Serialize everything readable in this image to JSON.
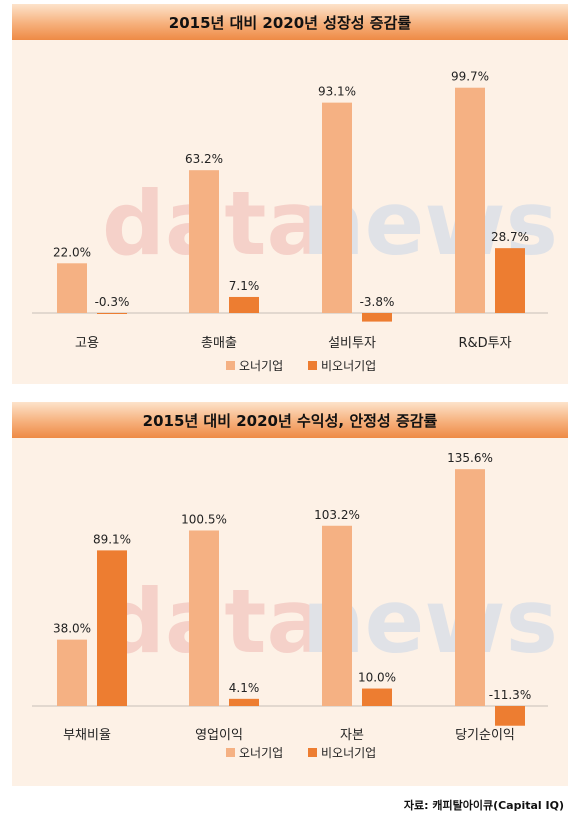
{
  "watermark": {
    "text_d": "data",
    "text_n": "news",
    "colors": {
      "d": "#f3a9a5",
      "a": "#e6e6e6",
      "n": "#a9c6e8"
    }
  },
  "colors": {
    "owner": "#f5b183",
    "non_owner": "#ed7d31",
    "panel_bg": "#fdf1e6"
  },
  "chart_data": [
    {
      "type": "bar",
      "title": "2015년 대비 2020년 성장성 증감률",
      "categories": [
        "고용",
        "총매출",
        "설비투자",
        "R&D투자"
      ],
      "series": [
        {
          "name": "오너기업",
          "values": [
            22.0,
            63.2,
            93.1,
            99.7
          ],
          "labels": [
            "22.0%",
            "63.2%",
            "93.1%",
            "99.7%"
          ]
        },
        {
          "name": "비오너기업",
          "values": [
            -0.3,
            7.1,
            -3.8,
            28.7
          ],
          "labels": [
            "-0.3%",
            "7.1%",
            "-3.8%",
            "28.7%"
          ]
        }
      ],
      "ylim": [
        -6,
        104
      ],
      "legend": "bottom"
    },
    {
      "type": "bar",
      "title": "2015년 대비 2020년 수익성, 안정성 증감률",
      "categories": [
        "부채비율",
        "영업이익",
        "자본",
        "당기순이익"
      ],
      "series": [
        {
          "name": "오너기업",
          "values": [
            38.0,
            100.5,
            103.2,
            135.6
          ],
          "labels": [
            "38.0%",
            "100.5%",
            "103.2%",
            "135.6%"
          ]
        },
        {
          "name": "비오너기업",
          "values": [
            89.1,
            4.1,
            10.0,
            -11.3
          ],
          "labels": [
            "89.1%",
            "4.1%",
            "10.0%",
            "-11.3%"
          ]
        }
      ],
      "ylim": [
        -14,
        142
      ],
      "legend": "bottom"
    }
  ],
  "source": "자료: 캐피탈아이큐(Capital IQ)"
}
